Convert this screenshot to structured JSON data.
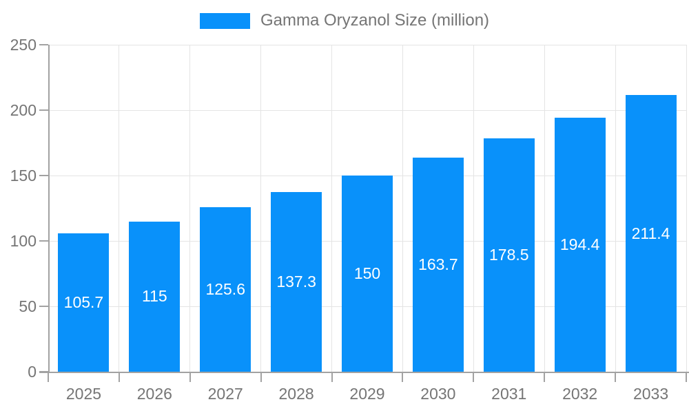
{
  "legend": {
    "label": "Gamma Oryzanol Size (million)"
  },
  "chart_data": {
    "type": "bar",
    "title": "Gamma Oryzanol Size (million)",
    "series_name": "Gamma Oryzanol Size (million)",
    "categories": [
      "2025",
      "2026",
      "2027",
      "2028",
      "2029",
      "2030",
      "2031",
      "2032",
      "2033"
    ],
    "values": [
      105.7,
      115,
      125.6,
      137.3,
      150,
      163.7,
      178.5,
      194.4,
      211.4
    ],
    "value_labels": [
      "105.7",
      "115",
      "125.6",
      "137.3",
      "150",
      "163.7",
      "178.5",
      "194.4",
      "211.4"
    ],
    "xlabel": "",
    "ylabel": "",
    "ylim": [
      0,
      250
    ],
    "yticks": [
      0,
      50,
      100,
      150,
      200,
      250
    ],
    "ytick_labels": [
      "0",
      "50",
      "100",
      "150",
      "200",
      "250"
    ],
    "grid": true,
    "legend_position": "top",
    "colors": {
      "bar": "#0991fa",
      "bar_value_text": "#ffffff",
      "axis": "#a2a2a2",
      "gridline": "#e4e4e4",
      "tick_text": "#757575",
      "legend_text": "#757575"
    }
  }
}
